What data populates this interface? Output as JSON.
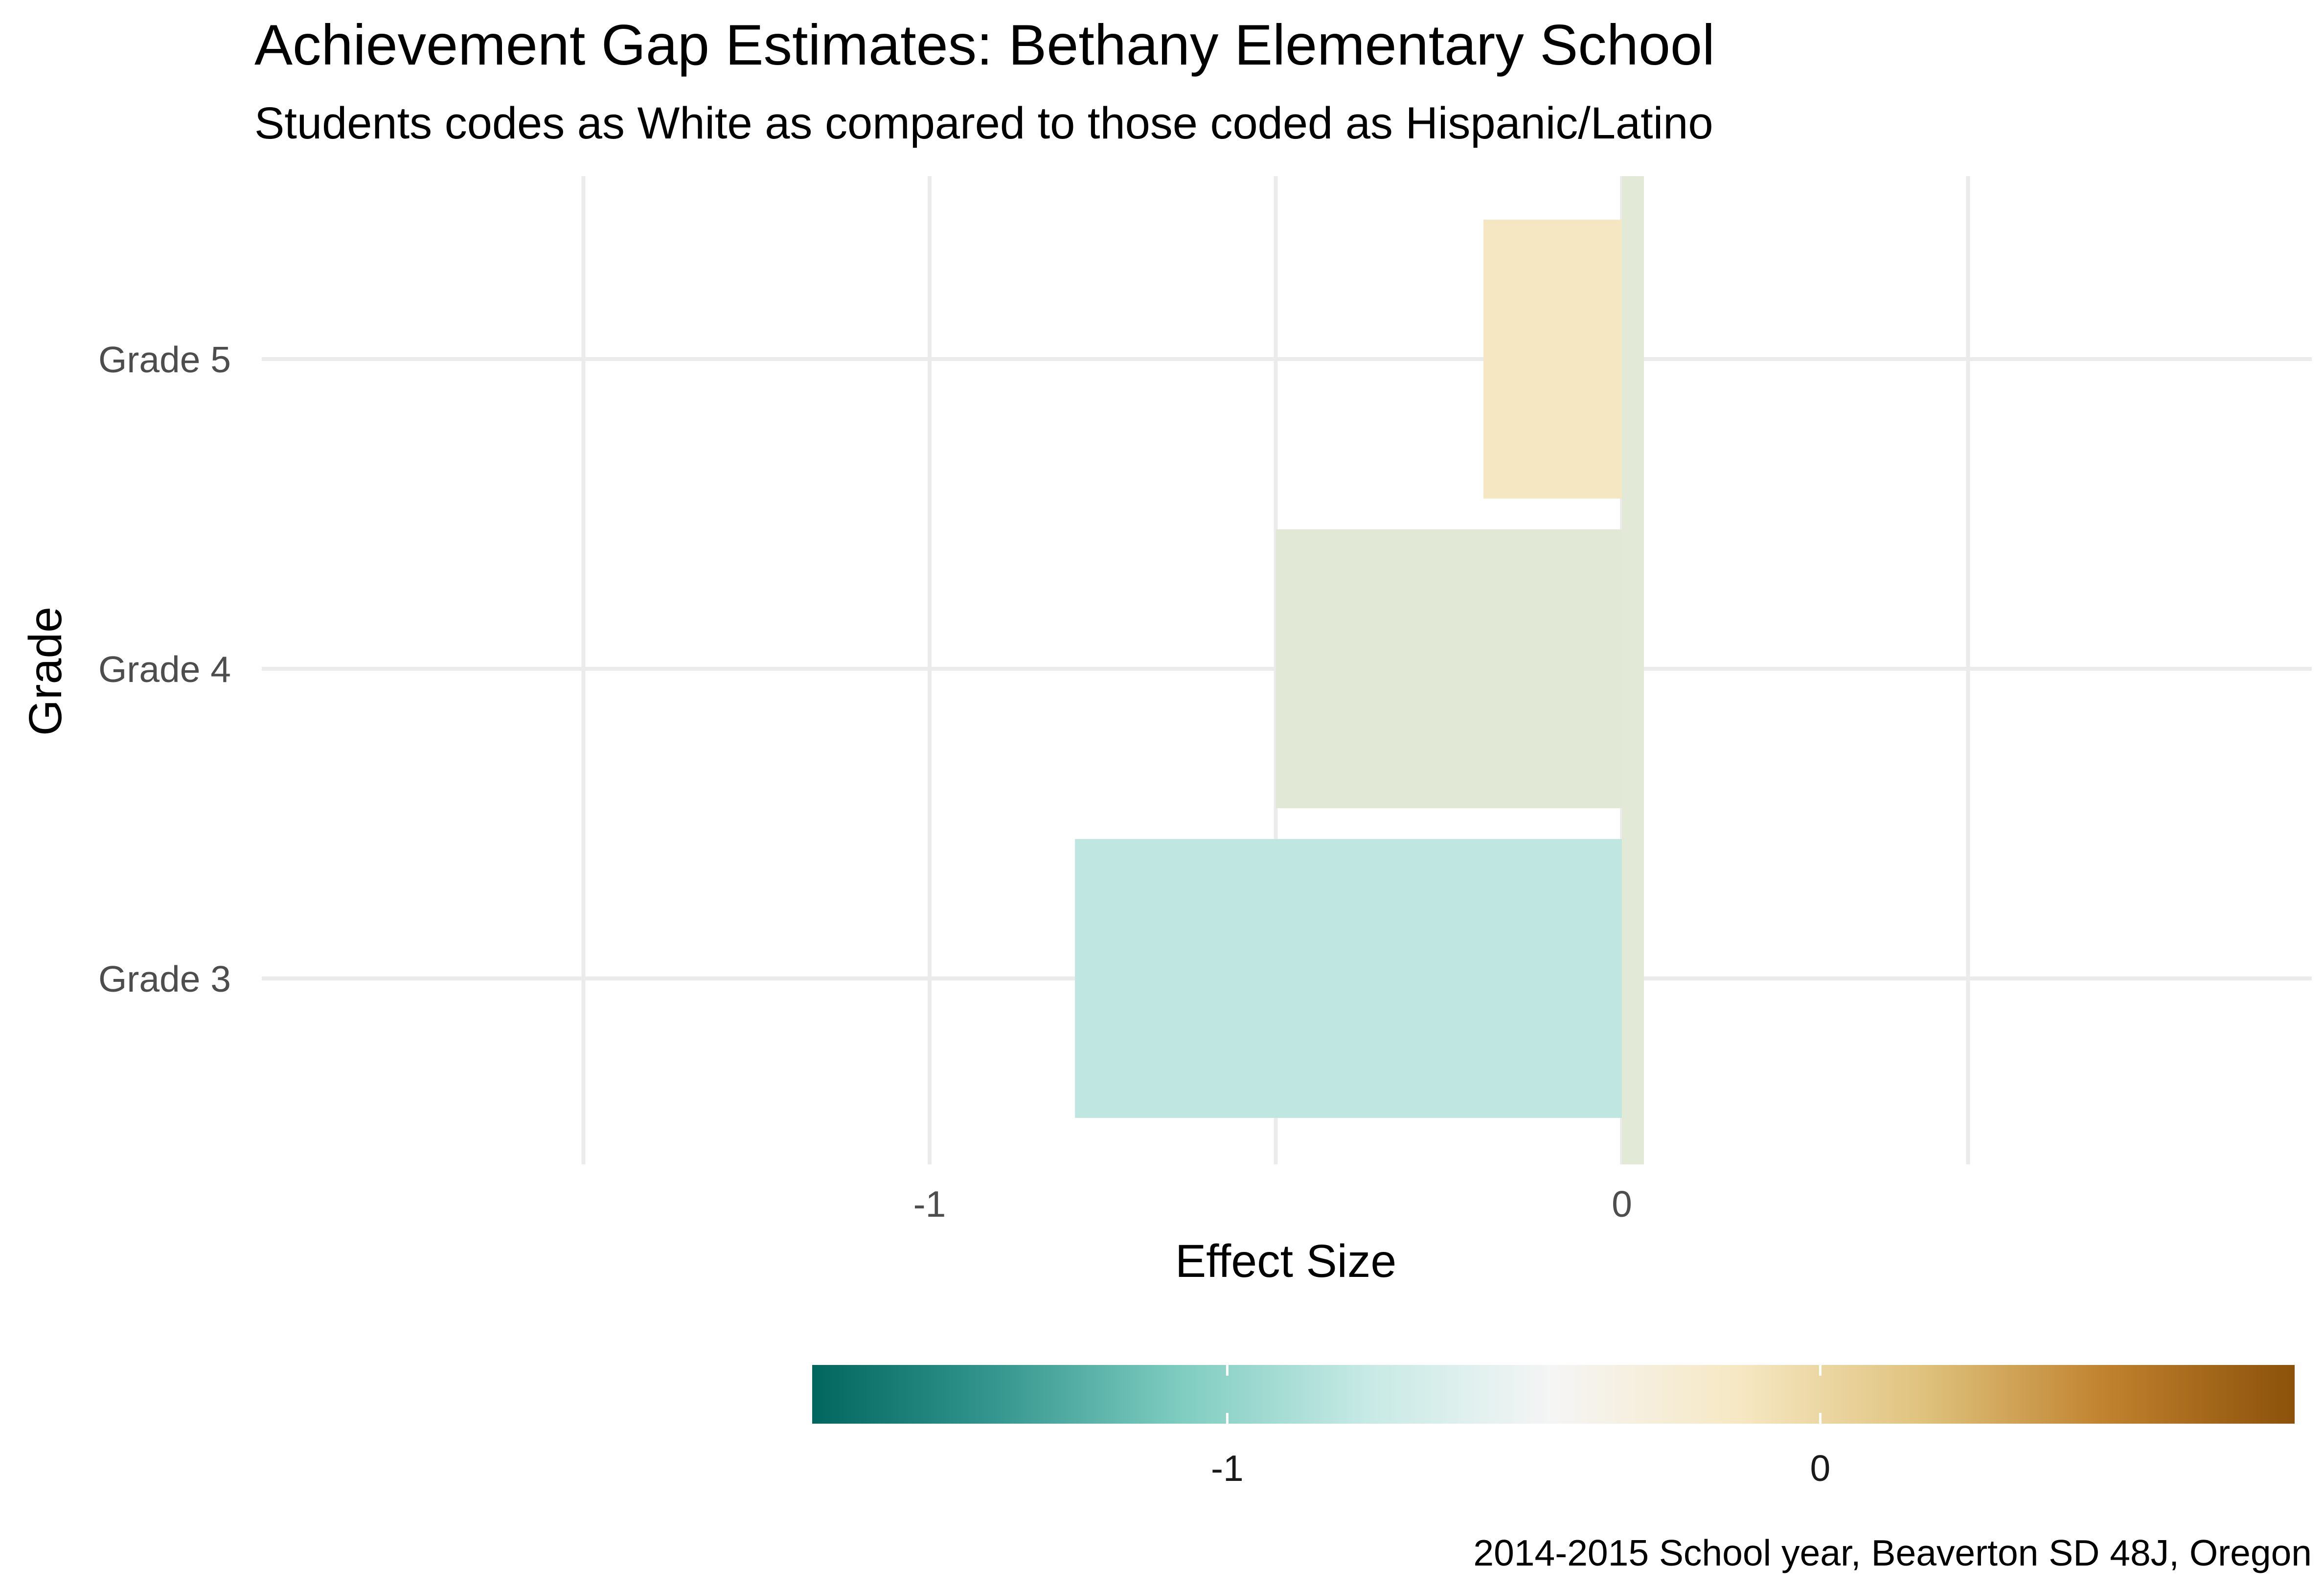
{
  "chart_data": {
    "type": "bar",
    "orientation": "horizontal",
    "title": "Achievement Gap Estimates: Bethany Elementary School",
    "subtitle": "Students codes as White as compared to those coded as Hispanic/Latino",
    "xlabel": "Effect Size",
    "ylabel": "Grade",
    "caption": "2014-2015 School year, Beaverton SD 48J, Oregon",
    "categories": [
      "Grade 3",
      "Grade 4",
      "Grade 5"
    ],
    "values": [
      -0.79,
      -0.5,
      -0.2
    ],
    "xlim": [
      -1.5,
      1.0
    ],
    "x_ticks": [
      -1,
      0
    ],
    "x_tick_labels": [
      "-1",
      "0"
    ],
    "grid": true,
    "reference_line": {
      "value": 0,
      "color": "#e2e9d6"
    },
    "legend": {
      "type": "colorbar",
      "position": "bottom",
      "range": [
        -1.7,
        0.8
      ],
      "ticks": [
        -1,
        0
      ],
      "tick_labels": [
        "-1",
        "0"
      ],
      "palette": [
        "#01665e",
        "#35978f",
        "#80cdc1",
        "#c7eae5",
        "#f5f5f5",
        "#f6e8c3",
        "#dfc27d",
        "#bf812d",
        "#8c510a"
      ]
    },
    "bar_colors": [
      "#c0e6e1",
      "#e1e9d6",
      "#f4e7c2"
    ]
  }
}
